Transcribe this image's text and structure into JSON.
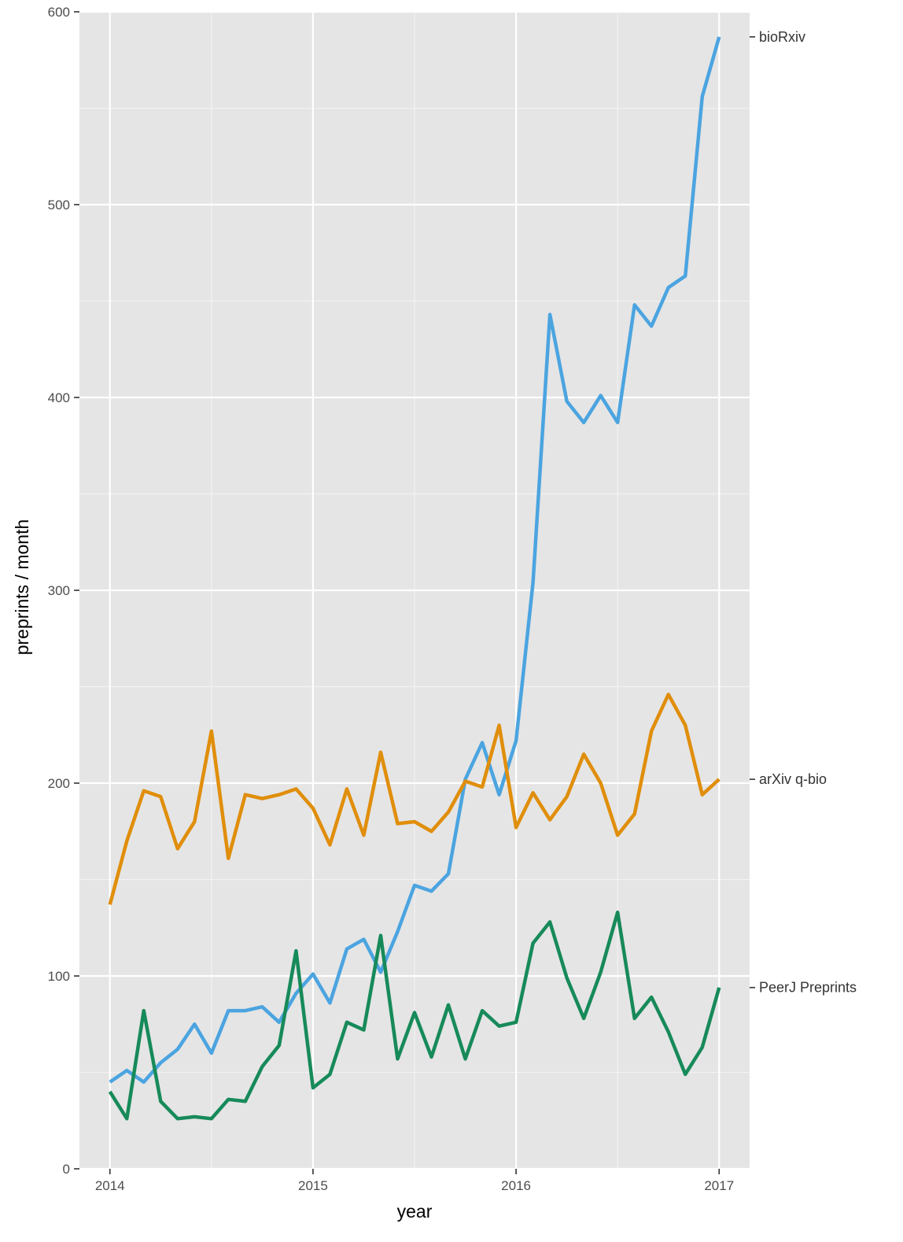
{
  "chart_data": {
    "type": "line",
    "title": "",
    "xlabel": "year",
    "ylabel": "preprints / month",
    "xlim": [
      2013.85,
      2017.15
    ],
    "ylim": [
      0,
      600
    ],
    "x_ticks": [
      2014,
      2015,
      2016,
      2017
    ],
    "x_tick_labels": [
      "2014",
      "2015",
      "2016",
      "2017"
    ],
    "y_ticks": [
      0,
      100,
      200,
      300,
      400,
      500,
      600
    ],
    "y_tick_labels": [
      "0",
      "100",
      "200",
      "300",
      "400",
      "500",
      "600"
    ],
    "grid": true,
    "legend": "none",
    "x_step_months": 1,
    "x_start": 2014,
    "series": [
      {
        "name": "bioRxiv",
        "color": "#4ba4e0",
        "label_y": 587,
        "values": [
          45,
          51,
          45,
          55,
          62,
          75,
          60,
          82,
          82,
          84,
          76,
          91,
          101,
          86,
          114,
          119,
          102,
          123,
          147,
          144,
          153,
          202,
          221,
          194,
          222,
          304,
          443,
          398,
          387,
          401,
          387,
          448,
          437,
          457,
          463,
          556,
          587
        ]
      },
      {
        "name": "arXiv q-bio",
        "color": "#e08e0b",
        "label_y": 202,
        "values": [
          137,
          170,
          196,
          193,
          166,
          180,
          227,
          161,
          194,
          192,
          194,
          197,
          187,
          168,
          197,
          173,
          216,
          179,
          180,
          175,
          185,
          201,
          198,
          230,
          177,
          195,
          181,
          193,
          215,
          200,
          173,
          184,
          227,
          246,
          230,
          194,
          202
        ]
      },
      {
        "name": "PeerJ Preprints",
        "color": "#178a5a",
        "label_y": 94,
        "values": [
          40,
          26,
          82,
          35,
          26,
          27,
          26,
          36,
          35,
          53,
          64,
          113,
          42,
          49,
          76,
          72,
          121,
          57,
          81,
          58,
          85,
          57,
          82,
          74,
          76,
          117,
          128,
          99,
          78,
          102,
          133,
          78,
          89,
          71,
          49,
          63,
          94
        ]
      }
    ]
  }
}
